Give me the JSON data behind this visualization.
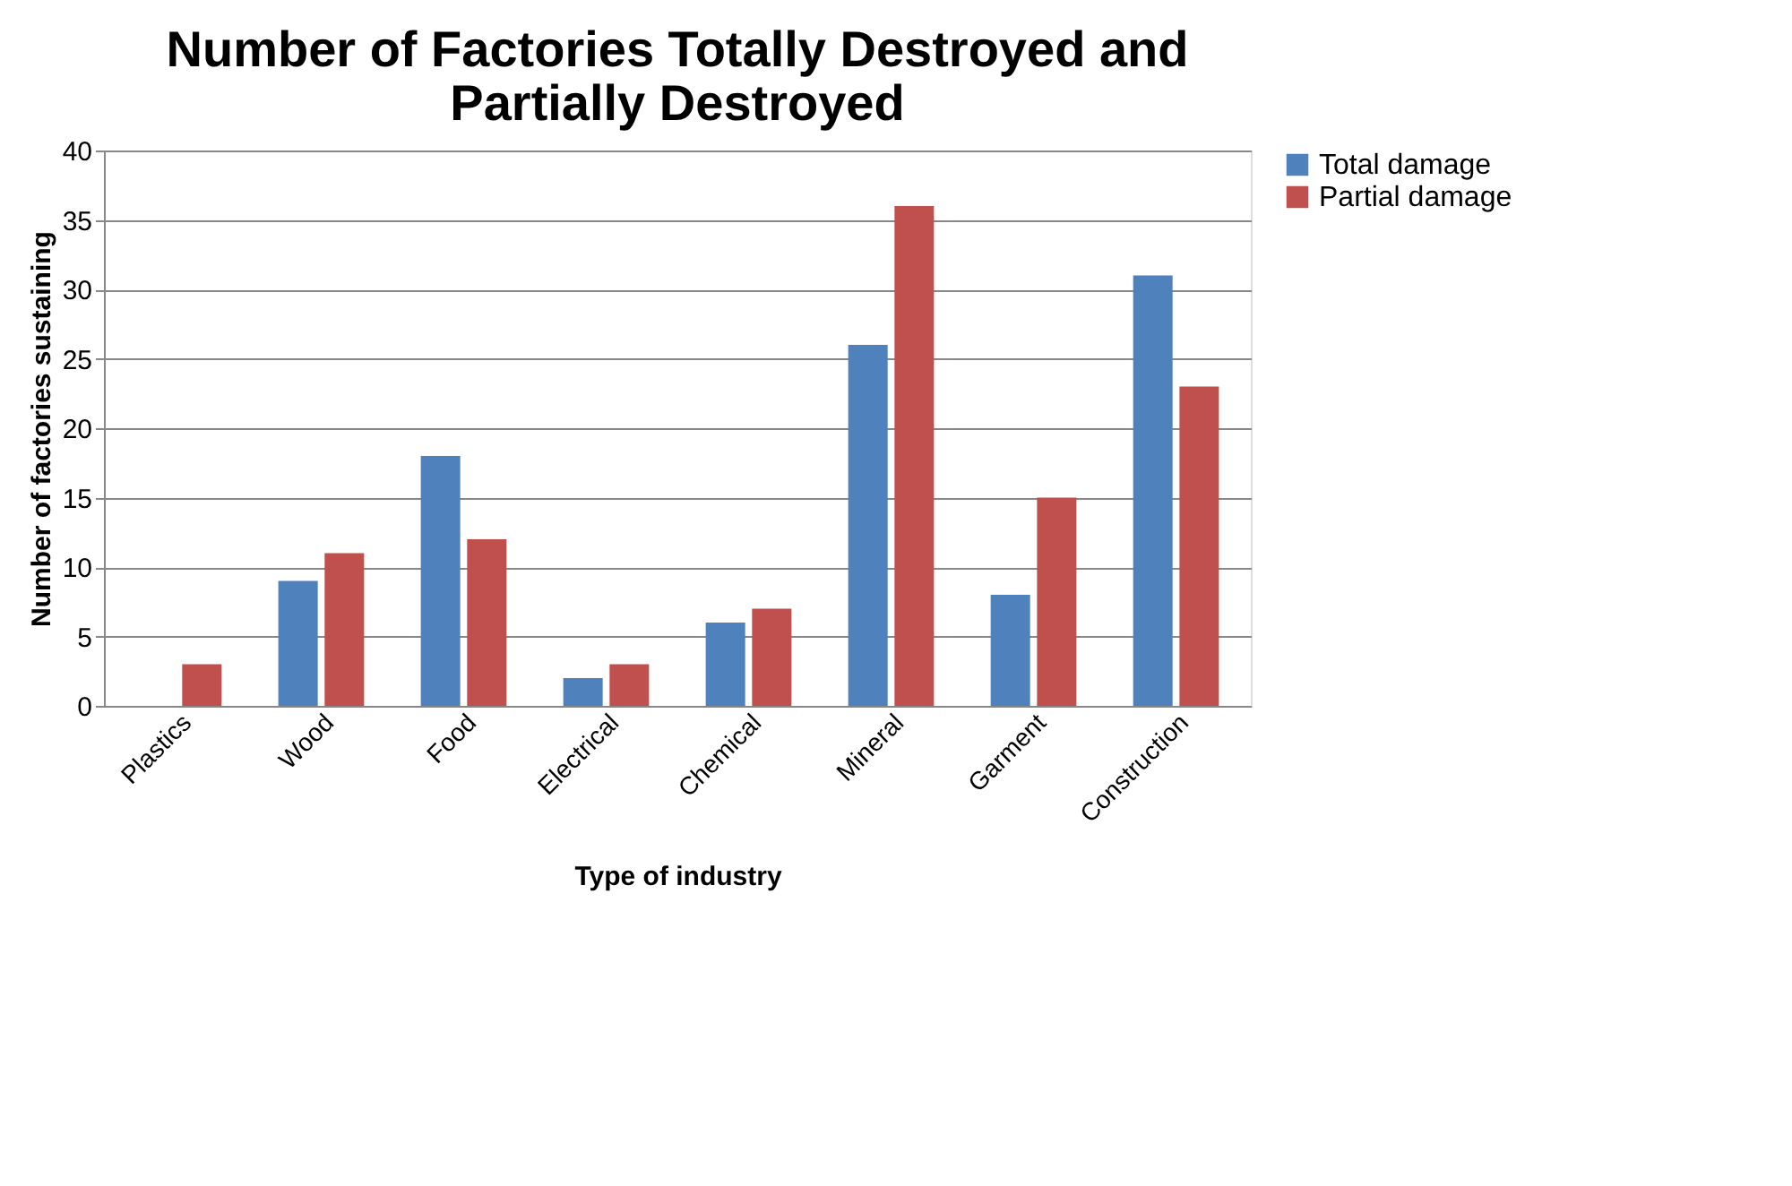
{
  "chart_data": {
    "type": "bar",
    "title": "Number of Factories Totally Destroyed and Partially Destroyed",
    "xlabel": "Type of industry",
    "ylabel": "Number of factories sustaining",
    "categories": [
      "Plastics",
      "Wood",
      "Food",
      "Electrical",
      "Chemical",
      "Mineral",
      "Garment",
      "Construction"
    ],
    "series": [
      {
        "name": "Total damage",
        "color": "#4f81bd",
        "values": [
          0,
          9,
          18,
          2,
          6,
          26,
          8,
          31
        ]
      },
      {
        "name": "Partial damage",
        "color": "#c0504d",
        "values": [
          3,
          11,
          12,
          3,
          7,
          36,
          15,
          23
        ]
      }
    ],
    "ylim": [
      0,
      40
    ],
    "yticks": [
      0,
      5,
      10,
      15,
      20,
      25,
      30,
      35,
      40
    ],
    "grid": "y",
    "legend": "right"
  }
}
